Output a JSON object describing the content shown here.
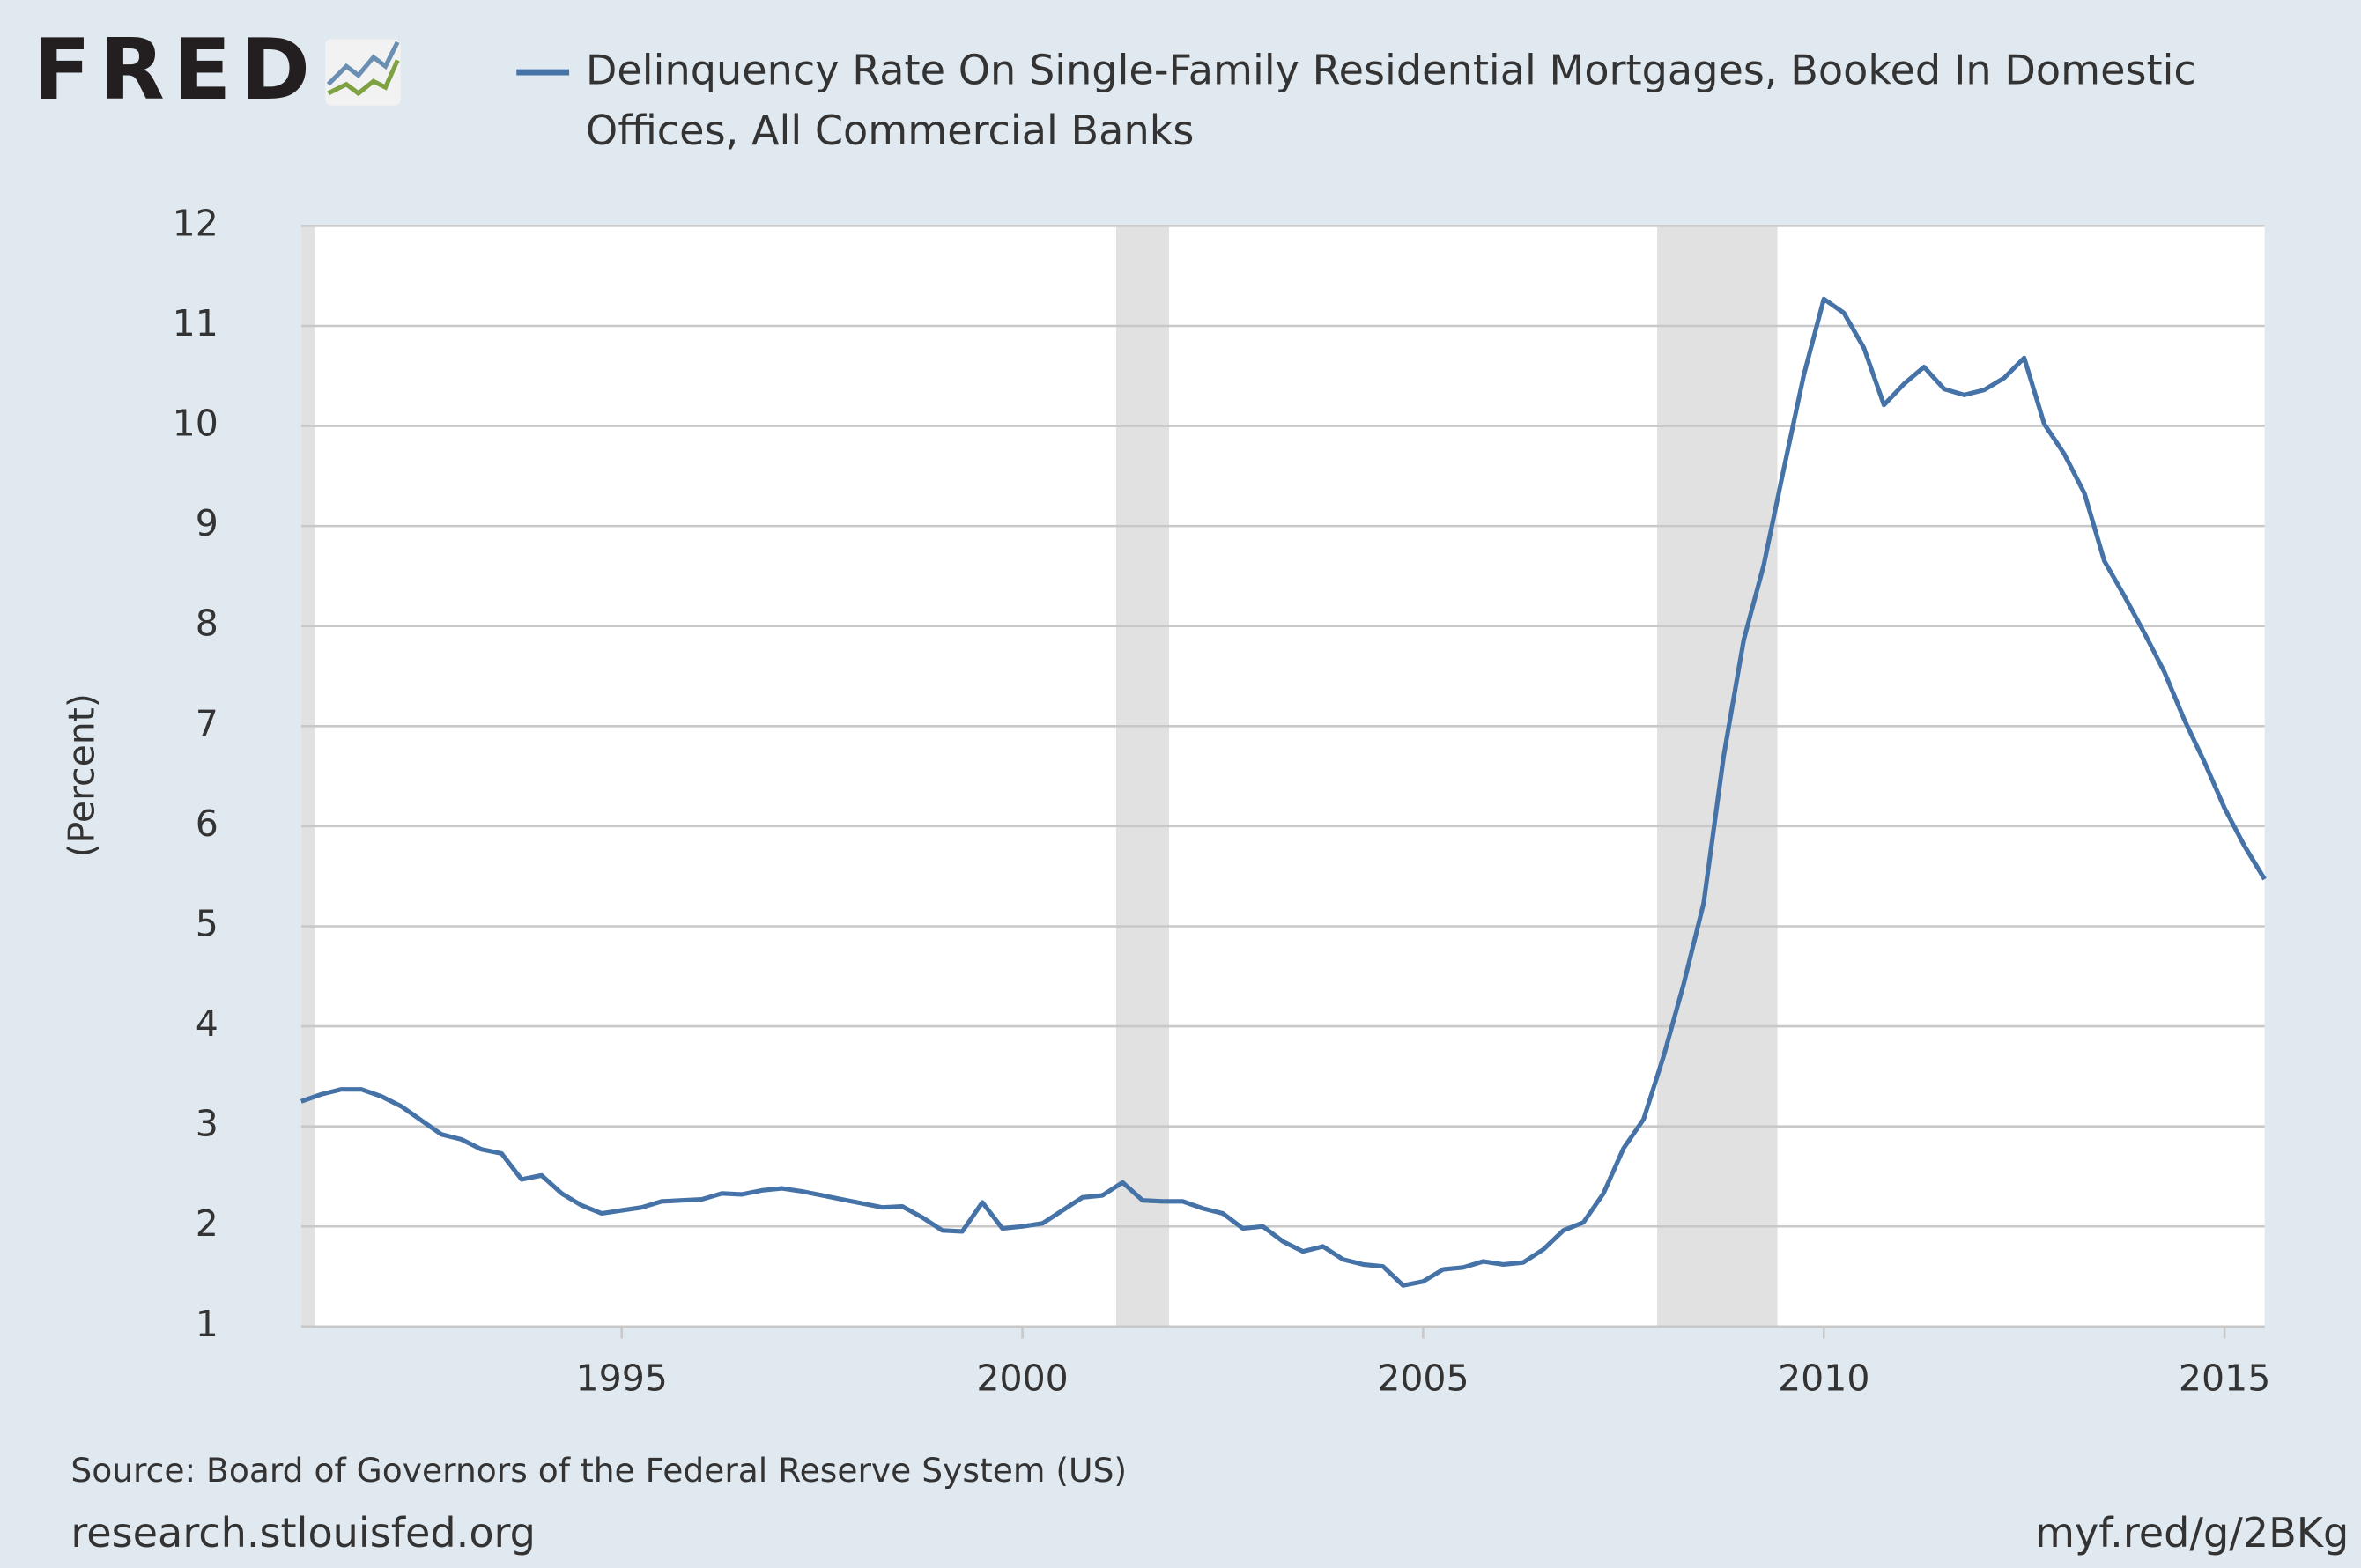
{
  "logo": "FRED",
  "chart_data": {
    "type": "line",
    "y_axis_label": "(Percent)",
    "source": "Source: Board of Governors of the Federal Reserve System (US)",
    "site": "research.stlouisfed.org",
    "short_link": "myf.red/g/2BKg",
    "x": [
      1991,
      1991.25,
      1991.5,
      1991.75,
      1992,
      1992.25,
      1992.5,
      1992.75,
      1993,
      1993.25,
      1993.5,
      1993.75,
      1994,
      1994.25,
      1994.5,
      1994.75,
      1995,
      1995.25,
      1995.5,
      1995.75,
      1996,
      1996.25,
      1996.5,
      1996.75,
      1997,
      1997.25,
      1997.5,
      1997.75,
      1998,
      1998.25,
      1998.5,
      1998.75,
      1999,
      1999.25,
      1999.5,
      1999.75,
      2000,
      2000.25,
      2000.5,
      2000.75,
      2001,
      2001.25,
      2001.5,
      2001.75,
      2002,
      2002.25,
      2002.5,
      2002.75,
      2003,
      2003.25,
      2003.5,
      2003.75,
      2004,
      2004.25,
      2004.5,
      2004.75,
      2005,
      2005.25,
      2005.5,
      2005.75,
      2006,
      2006.25,
      2006.5,
      2006.75,
      2007,
      2007.25,
      2007.5,
      2007.75,
      2008,
      2008.25,
      2008.5,
      2008.75,
      2009,
      2009.25,
      2009.5,
      2009.75,
      2010,
      2010.25,
      2010.5,
      2010.75,
      2011,
      2011.25,
      2011.5,
      2011.75,
      2012,
      2012.25,
      2012.5,
      2012.75,
      2013,
      2013.25,
      2013.5,
      2013.75,
      2014,
      2014.25,
      2014.5,
      2014.75,
      2015,
      2015.25,
      2015.5
    ],
    "series": [
      {
        "name": "Delinquency Rate On Single-Family Residential Mortgages, Booked In Domestic Offices, All Commercial Banks",
        "color": "#4572a7",
        "values": [
          3.25,
          3.32,
          3.37,
          3.37,
          3.3,
          3.2,
          3.06,
          2.92,
          2.87,
          2.77,
          2.73,
          2.47,
          2.51,
          2.33,
          2.21,
          2.13,
          2.16,
          2.19,
          2.25,
          2.26,
          2.27,
          2.33,
          2.32,
          2.36,
          2.38,
          2.35,
          2.31,
          2.27,
          2.23,
          2.19,
          2.2,
          2.09,
          1.96,
          1.95,
          2.24,
          1.98,
          2.0,
          2.03,
          2.16,
          2.29,
          2.31,
          2.44,
          2.26,
          2.25,
          2.25,
          2.18,
          2.13,
          1.98,
          2.0,
          1.85,
          1.75,
          1.8,
          1.67,
          1.62,
          1.6,
          1.41,
          1.45,
          1.57,
          1.59,
          1.65,
          1.62,
          1.64,
          1.77,
          1.96,
          2.04,
          2.33,
          2.78,
          3.07,
          3.7,
          4.42,
          5.23,
          6.7,
          7.86,
          8.61,
          9.57,
          10.51,
          11.27,
          11.13,
          10.78,
          10.21,
          10.42,
          10.59,
          10.37,
          10.31,
          10.36,
          10.48,
          10.68,
          10.02,
          9.72,
          9.33,
          8.65,
          8.3,
          7.93,
          7.54,
          7.06,
          6.64,
          6.18,
          5.8,
          5.47
        ]
      }
    ],
    "recessions": [
      [
        1990.5,
        1991.17
      ],
      [
        2001.17,
        2001.83
      ],
      [
        2007.92,
        2009.42
      ]
    ],
    "recession_color": "#e1e1e1",
    "xlim": [
      1991,
      2015.5
    ],
    "xticks": [
      1995,
      2000,
      2005,
      2010,
      2015
    ],
    "ylim": [
      1,
      12
    ],
    "yticks": [
      1,
      2,
      3,
      4,
      5,
      6,
      7,
      8,
      9,
      10,
      11,
      12
    ],
    "grid": true
  }
}
